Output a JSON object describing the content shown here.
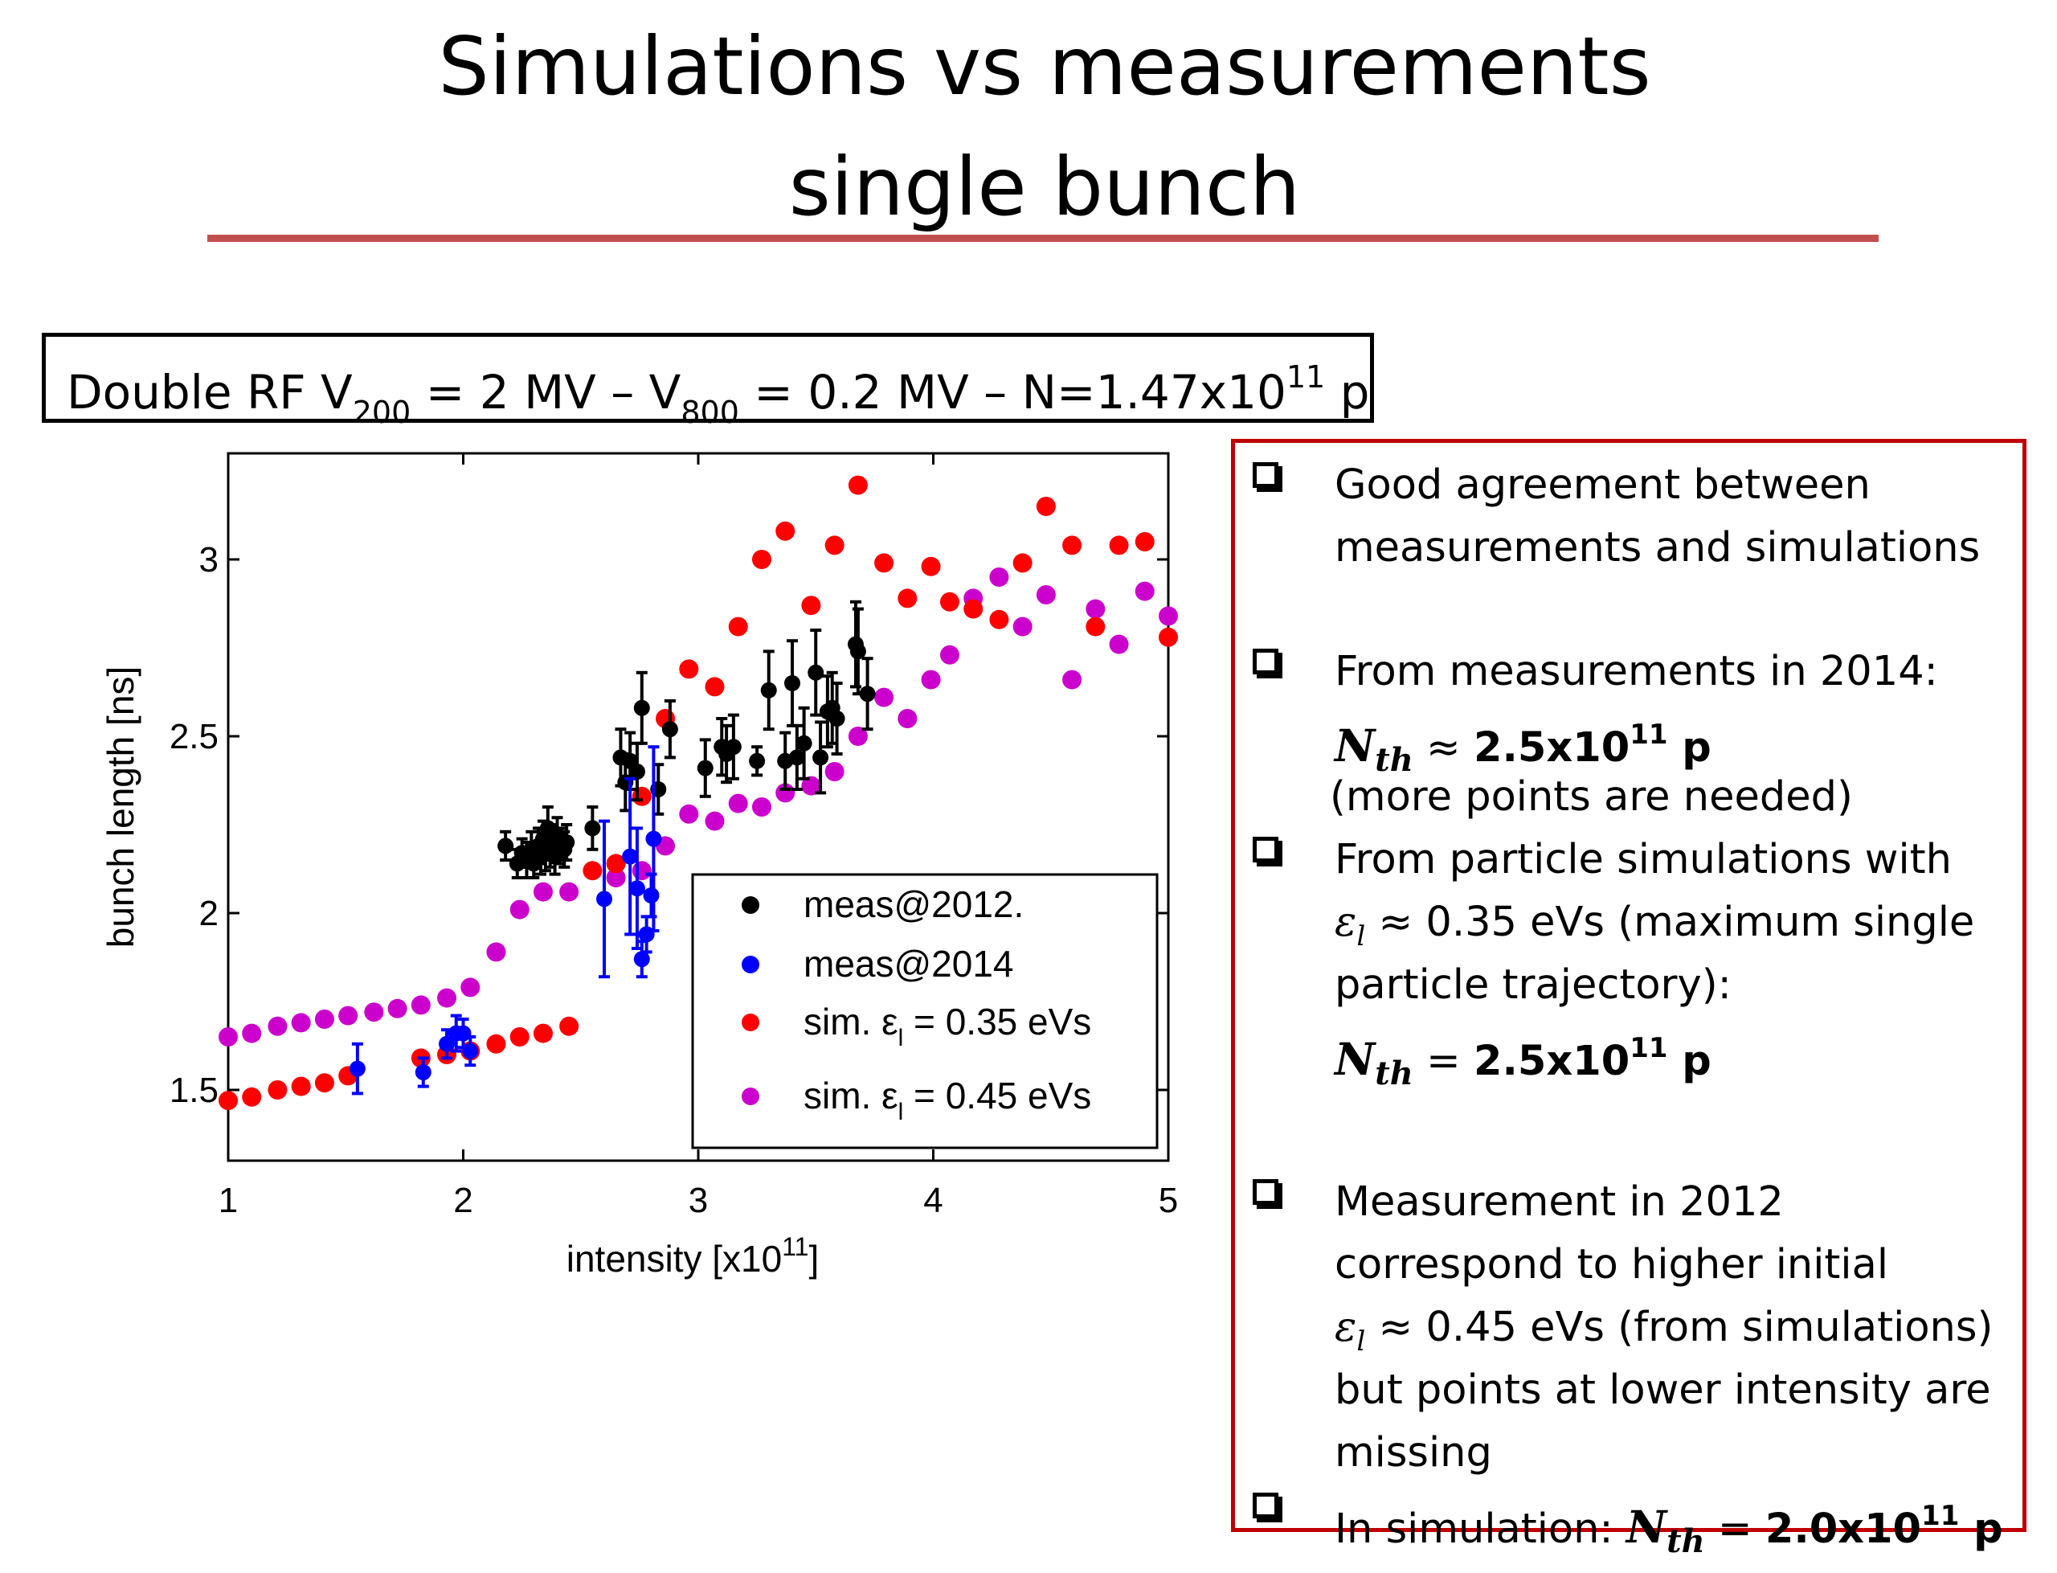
{
  "slide": {
    "title_line1": "Simulations vs measurements",
    "title_line2": "single bunch",
    "accent_color": "#c0504d",
    "conditions": {
      "p1": "Double RF V",
      "sub1": "200",
      "p2": " = 2 MV – V",
      "sub2": "800",
      "p3": " = 0.2 MV – N=1.47x10",
      "sup1": "11",
      "p4": " p"
    }
  },
  "notes": {
    "border_color": "#c00000",
    "item1_l1": "Good agreement between",
    "item1_l2": "measurements and simulations",
    "item2_l1": "From measurements in 2014:",
    "item2_math": "N",
    "item2_mathsub": "th",
    "item2_op": " ≈ ",
    "item2_val": "2.5x10",
    "item2_sup": "11",
    "item2_unit": " p",
    "item2_l3": "(more points are needed)",
    "item3_l1": "From particle simulations with",
    "item3_sym": "ε",
    "item3_symsub": "l",
    "item3_l2": " ≈ 0.35 eVs (maximum single",
    "item3_l3": "particle trajectory):",
    "item3_math": "N",
    "item3_mathsub": "th",
    "item3_op": " = ",
    "item3_val": "2.5x10",
    "item3_sup": "11",
    "item3_unit": " p",
    "item4_l1": "Measurement in 2012",
    "item4_l2": "correspond to higher initial",
    "item4_sym": "ε",
    "item4_symsub": "l",
    "item4_l3": " ≈ 0.45 eVs  (from simulations)",
    "item4_l4": "but points at lower intensity are",
    "item4_l5": "missing",
    "item5_prefix": "In simulation: ",
    "item5_math": "N",
    "item5_mathsub": "th",
    "item5_op": " = ",
    "item5_val": "2.0x10",
    "item5_sup": "11",
    "item5_unit": " p"
  },
  "chart_data": {
    "type": "scatter",
    "xlabel": "intensity [x10",
    "xlabel_sup": "11",
    "xlabel_end": "]",
    "ylabel": "bunch length [ns]",
    "xlim": [
      1,
      5
    ],
    "ylim": [
      1.3,
      3.3
    ],
    "xticks": [
      1,
      2,
      3,
      4,
      5
    ],
    "yticks": [
      1.5,
      2,
      2.5,
      3
    ],
    "ytick_labels": [
      "1.5",
      "2",
      "2.5",
      "3"
    ],
    "legend_position": "bottom-right",
    "series": [
      {
        "name": "meas@2012.",
        "color": "#000000",
        "errorbars": true,
        "points": [
          {
            "x": 2.18,
            "y": 2.19,
            "err": 0.04
          },
          {
            "x": 2.23,
            "y": 2.14,
            "err": 0.04
          },
          {
            "x": 2.25,
            "y": 2.17,
            "err": 0.04
          },
          {
            "x": 2.27,
            "y": 2.15,
            "err": 0.05
          },
          {
            "x": 2.29,
            "y": 2.18,
            "err": 0.05
          },
          {
            "x": 2.3,
            "y": 2.14,
            "err": 0.04
          },
          {
            "x": 2.32,
            "y": 2.19,
            "err": 0.05
          },
          {
            "x": 2.33,
            "y": 2.16,
            "err": 0.05
          },
          {
            "x": 2.34,
            "y": 2.21,
            "err": 0.05
          },
          {
            "x": 2.35,
            "y": 2.17,
            "err": 0.05
          },
          {
            "x": 2.36,
            "y": 2.24,
            "err": 0.06
          },
          {
            "x": 2.37,
            "y": 2.18,
            "err": 0.05
          },
          {
            "x": 2.38,
            "y": 2.2,
            "err": 0.05
          },
          {
            "x": 2.39,
            "y": 2.16,
            "err": 0.05
          },
          {
            "x": 2.4,
            "y": 2.22,
            "err": 0.05
          },
          {
            "x": 2.41,
            "y": 2.19,
            "err": 0.05
          },
          {
            "x": 2.43,
            "y": 2.18,
            "err": 0.05
          },
          {
            "x": 2.44,
            "y": 2.2,
            "err": 0.05
          },
          {
            "x": 2.55,
            "y": 2.24,
            "err": 0.06
          },
          {
            "x": 2.67,
            "y": 2.44,
            "err": 0.08
          },
          {
            "x": 2.69,
            "y": 2.37,
            "err": 0.08
          },
          {
            "x": 2.71,
            "y": 2.43,
            "err": 0.08
          },
          {
            "x": 2.74,
            "y": 2.4,
            "err": 0.08
          },
          {
            "x": 2.76,
            "y": 2.58,
            "err": 0.1
          },
          {
            "x": 2.83,
            "y": 2.35,
            "err": 0.07
          },
          {
            "x": 2.88,
            "y": 2.52,
            "err": 0.08
          },
          {
            "x": 3.03,
            "y": 2.41,
            "err": 0.08
          },
          {
            "x": 3.1,
            "y": 2.47,
            "err": 0.08
          },
          {
            "x": 3.12,
            "y": 2.45,
            "err": 0.08
          },
          {
            "x": 3.15,
            "y": 2.47,
            "err": 0.09
          },
          {
            "x": 3.25,
            "y": 2.43,
            "err": 0.04
          },
          {
            "x": 3.3,
            "y": 2.63,
            "err": 0.11
          },
          {
            "x": 3.37,
            "y": 2.43,
            "err": 0.08
          },
          {
            "x": 3.4,
            "y": 2.65,
            "err": 0.12
          },
          {
            "x": 3.42,
            "y": 2.44,
            "err": 0.09
          },
          {
            "x": 3.45,
            "y": 2.48,
            "err": 0.1
          },
          {
            "x": 3.5,
            "y": 2.68,
            "err": 0.12
          },
          {
            "x": 3.52,
            "y": 2.44,
            "err": 0.1
          },
          {
            "x": 3.55,
            "y": 2.57,
            "err": 0.1
          },
          {
            "x": 3.57,
            "y": 2.58,
            "err": 0.1
          },
          {
            "x": 3.59,
            "y": 2.55,
            "err": 0.1
          },
          {
            "x": 3.67,
            "y": 2.76,
            "err": 0.12
          },
          {
            "x": 3.68,
            "y": 2.74,
            "err": 0.12
          },
          {
            "x": 3.72,
            "y": 2.62,
            "err": 0.1
          }
        ]
      },
      {
        "name": "meas@2014",
        "color": "#0000ff",
        "errorbars": true,
        "points": [
          {
            "x": 1.55,
            "y": 1.56,
            "err": 0.07
          },
          {
            "x": 1.83,
            "y": 1.55,
            "err": 0.04
          },
          {
            "x": 1.93,
            "y": 1.63,
            "err": 0.04
          },
          {
            "x": 1.97,
            "y": 1.66,
            "err": 0.05
          },
          {
            "x": 2.0,
            "y": 1.66,
            "err": 0.04
          },
          {
            "x": 2.03,
            "y": 1.61,
            "err": 0.04
          },
          {
            "x": 2.6,
            "y": 2.04,
            "err": 0.22
          },
          {
            "x": 2.71,
            "y": 2.16,
            "err": 0.22
          },
          {
            "x": 2.74,
            "y": 2.07,
            "err": 0.17
          },
          {
            "x": 2.76,
            "y": 1.87,
            "err": 0.05
          },
          {
            "x": 2.78,
            "y": 1.94,
            "err": 0.05
          },
          {
            "x": 2.8,
            "y": 2.05,
            "err": 0.06
          },
          {
            "x": 2.81,
            "y": 2.21,
            "err": 0.26
          }
        ]
      },
      {
        "name": "sim. ε_l = 0.35 eVs",
        "color": "#ff0000",
        "errorbars": false,
        "points": [
          {
            "x": 1.0,
            "y": 1.47
          },
          {
            "x": 1.1,
            "y": 1.48
          },
          {
            "x": 1.21,
            "y": 1.5
          },
          {
            "x": 1.31,
            "y": 1.51
          },
          {
            "x": 1.41,
            "y": 1.52
          },
          {
            "x": 1.51,
            "y": 1.54
          },
          {
            "x": 1.82,
            "y": 1.59
          },
          {
            "x": 1.93,
            "y": 1.6
          },
          {
            "x": 2.03,
            "y": 1.61
          },
          {
            "x": 2.14,
            "y": 1.63
          },
          {
            "x": 2.24,
            "y": 1.65
          },
          {
            "x": 2.34,
            "y": 1.66
          },
          {
            "x": 2.45,
            "y": 1.68
          },
          {
            "x": 2.55,
            "y": 2.12
          },
          {
            "x": 2.65,
            "y": 2.14
          },
          {
            "x": 2.76,
            "y": 2.33
          },
          {
            "x": 2.86,
            "y": 2.55
          },
          {
            "x": 2.96,
            "y": 2.69
          },
          {
            "x": 3.07,
            "y": 2.64
          },
          {
            "x": 3.17,
            "y": 2.81
          },
          {
            "x": 3.27,
            "y": 3.0
          },
          {
            "x": 3.37,
            "y": 3.08
          },
          {
            "x": 3.48,
            "y": 2.87
          },
          {
            "x": 3.58,
            "y": 3.04
          },
          {
            "x": 3.68,
            "y": 3.21
          },
          {
            "x": 3.79,
            "y": 2.99
          },
          {
            "x": 3.89,
            "y": 2.89
          },
          {
            "x": 3.99,
            "y": 2.98
          },
          {
            "x": 4.07,
            "y": 2.88
          },
          {
            "x": 4.17,
            "y": 2.86
          },
          {
            "x": 4.28,
            "y": 2.83
          },
          {
            "x": 4.38,
            "y": 2.99
          },
          {
            "x": 4.48,
            "y": 3.15
          },
          {
            "x": 4.59,
            "y": 3.04
          },
          {
            "x": 4.69,
            "y": 2.81
          },
          {
            "x": 4.79,
            "y": 3.04
          },
          {
            "x": 4.9,
            "y": 3.05
          },
          {
            "x": 5.0,
            "y": 2.78
          }
        ]
      },
      {
        "name": "sim. ε_l = 0.45 eVs",
        "color": "#cc00cc",
        "errorbars": false,
        "points": [
          {
            "x": 1.0,
            "y": 1.65
          },
          {
            "x": 1.1,
            "y": 1.66
          },
          {
            "x": 1.21,
            "y": 1.68
          },
          {
            "x": 1.31,
            "y": 1.69
          },
          {
            "x": 1.41,
            "y": 1.7
          },
          {
            "x": 1.51,
            "y": 1.71
          },
          {
            "x": 1.62,
            "y": 1.72
          },
          {
            "x": 1.72,
            "y": 1.73
          },
          {
            "x": 1.82,
            "y": 1.74
          },
          {
            "x": 1.93,
            "y": 1.76
          },
          {
            "x": 2.03,
            "y": 1.79
          },
          {
            "x": 2.14,
            "y": 1.89
          },
          {
            "x": 2.24,
            "y": 2.01
          },
          {
            "x": 2.34,
            "y": 2.06
          },
          {
            "x": 2.45,
            "y": 2.06
          },
          {
            "x": 2.65,
            "y": 2.1
          },
          {
            "x": 2.76,
            "y": 2.12
          },
          {
            "x": 2.86,
            "y": 2.19
          },
          {
            "x": 2.96,
            "y": 2.28
          },
          {
            "x": 3.07,
            "y": 2.26
          },
          {
            "x": 3.17,
            "y": 2.31
          },
          {
            "x": 3.27,
            "y": 2.3
          },
          {
            "x": 3.37,
            "y": 2.34
          },
          {
            "x": 3.48,
            "y": 2.36
          },
          {
            "x": 3.58,
            "y": 2.4
          },
          {
            "x": 3.68,
            "y": 2.5
          },
          {
            "x": 3.79,
            "y": 2.61
          },
          {
            "x": 3.89,
            "y": 2.55
          },
          {
            "x": 3.99,
            "y": 2.66
          },
          {
            "x": 4.07,
            "y": 2.73
          },
          {
            "x": 4.17,
            "y": 2.89
          },
          {
            "x": 4.28,
            "y": 2.95
          },
          {
            "x": 4.38,
            "y": 2.81
          },
          {
            "x": 4.48,
            "y": 2.9
          },
          {
            "x": 4.59,
            "y": 2.66
          },
          {
            "x": 4.69,
            "y": 2.86
          },
          {
            "x": 4.79,
            "y": 2.76
          },
          {
            "x": 4.9,
            "y": 2.91
          },
          {
            "x": 5.0,
            "y": 2.84
          }
        ]
      }
    ],
    "legend": {
      "items": [
        {
          "label": "meas@2012.",
          "color": "#000000"
        },
        {
          "label": "meas@2014",
          "color": "#0000ff"
        },
        {
          "label_pre": "sim. ε",
          "label_sub": "l",
          "label_post": " = 0.35 eVs",
          "color": "#ff0000"
        },
        {
          "label_pre": "sim. ε",
          "label_sub": "l",
          "label_post": " = 0.45 eVs",
          "color": "#cc00cc"
        }
      ]
    }
  }
}
